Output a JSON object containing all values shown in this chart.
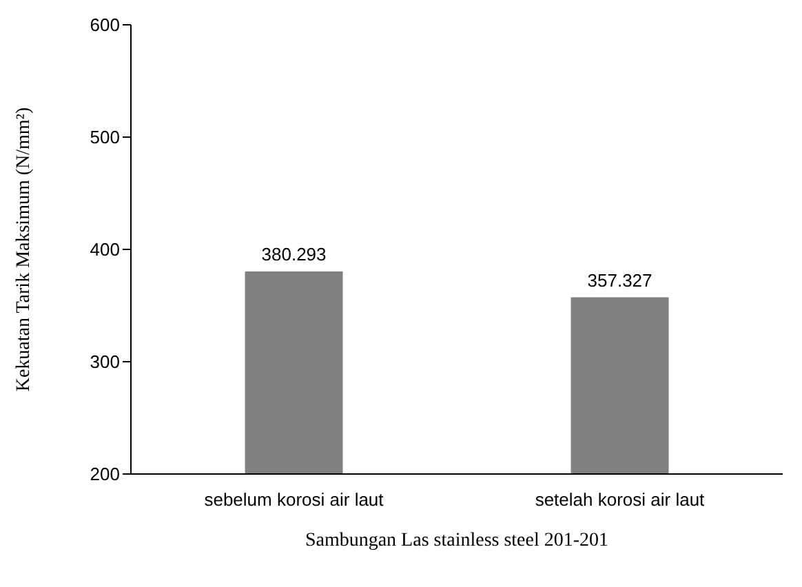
{
  "chart_data": {
    "type": "bar",
    "xlabel": "Sambungan Las stainless steel 201-201",
    "ylabel": "Kekuatan Tarik Maksimum (N/mm²)",
    "categories": [
      "sebelum korosi air laut",
      "setelah korosi air laut"
    ],
    "values": [
      380.293,
      357.327
    ],
    "color": "#808080",
    "data_labels": true,
    "ylim": [
      200,
      600
    ],
    "yticks": [
      200,
      300,
      400,
      500,
      600
    ],
    "grid": false,
    "legend": false
  }
}
